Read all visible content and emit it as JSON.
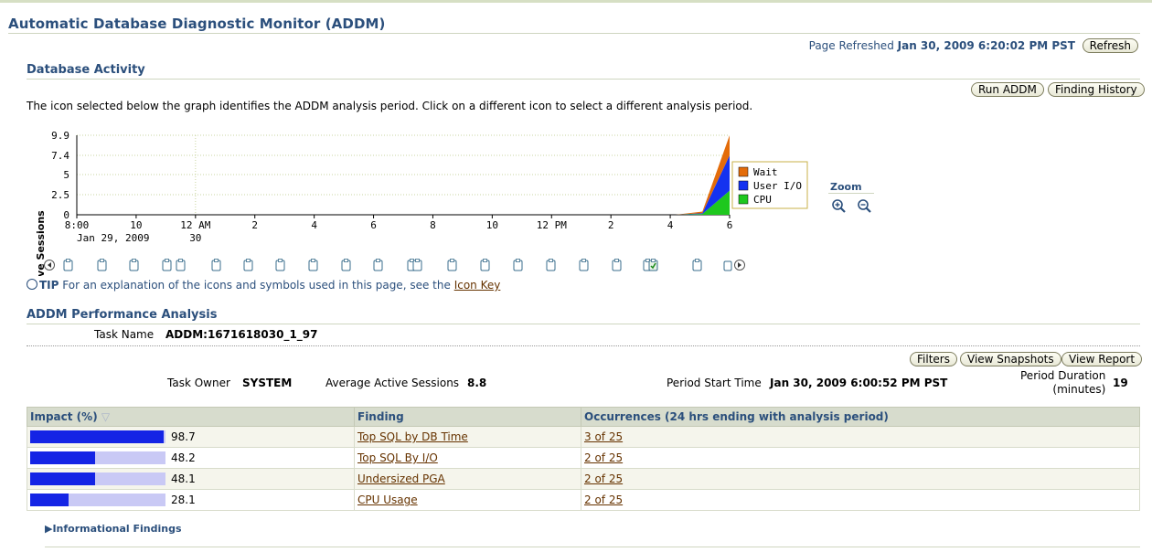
{
  "page": {
    "title": "Automatic Database Diagnostic Monitor (ADDM)"
  },
  "refresh": {
    "label": "Page Refreshed",
    "timestamp": "Jan 30, 2009 6:20:02 PM PST",
    "button": "Refresh"
  },
  "activity": {
    "heading": "Database Activity",
    "buttons": {
      "run_addm": "Run ADDM",
      "finding_history": "Finding History"
    },
    "instruction": "The icon selected below the graph identifies the ADDM analysis period. Click on a different icon to select a different analysis period.",
    "zoom_label": "Zoom",
    "tip_label": "TIP",
    "tip_text": "For an explanation of the icons and symbols used in this page, see the",
    "tip_link": "Icon Key"
  },
  "chart_data": {
    "type": "area",
    "ylabel": "Active Sessions",
    "yticks": [
      "0",
      "2.5",
      "5",
      "7.4",
      "9.9"
    ],
    "ylim": [
      0,
      9.9
    ],
    "xticks": [
      "8:00",
      "10",
      "12 AM",
      "2",
      "4",
      "6",
      "8",
      "10",
      "12 PM",
      "2",
      "4",
      "6"
    ],
    "xticks_sub": [
      "Jan 29, 2009",
      "",
      "30",
      "",
      "",
      "",
      "",
      "",
      "",
      "",
      "",
      ""
    ],
    "grid": true,
    "legend_position": "right",
    "series": [
      {
        "name": "Wait",
        "color": "#e36c0a",
        "values": [
          0,
          0,
          0,
          0,
          0,
          0,
          0,
          0,
          0,
          0,
          0,
          0,
          0,
          0,
          0,
          0,
          0,
          0,
          0,
          0,
          0,
          0,
          0,
          0.2,
          2.5
        ]
      },
      {
        "name": "User I/O",
        "color": "#1432f0",
        "values": [
          0,
          0,
          0,
          0,
          0,
          0,
          0,
          0,
          0,
          0,
          0,
          0,
          0,
          0,
          0,
          0,
          0,
          0,
          0,
          0,
          0,
          0,
          0,
          0.1,
          4.4
        ]
      },
      {
        "name": "CPU",
        "color": "#1ec81e",
        "values": [
          0,
          0,
          0,
          0,
          0,
          0,
          0,
          0,
          0,
          0,
          0,
          0,
          0,
          0,
          0,
          0,
          0,
          0,
          0,
          0,
          0,
          0,
          0,
          0.1,
          3.0
        ]
      }
    ]
  },
  "snapshot_icons": {
    "count": 22,
    "selected_index": 20
  },
  "analysis": {
    "heading": "ADDM Performance Analysis",
    "task_name_label": "Task Name",
    "task_name": "ADDM:1671618030_1_97",
    "buttons": {
      "filters": "Filters",
      "view_snapshots": "View Snapshots",
      "view_report": "View Report"
    },
    "task_owner_label": "Task Owner",
    "task_owner": "SYSTEM",
    "avg_sessions_label": "Average Active Sessions",
    "avg_sessions": "8.8",
    "period_start_label": "Period Start Time",
    "period_start": "Jan 30, 2009 6:00:52 PM PST",
    "period_duration_label_1": "Period Duration",
    "period_duration_label_2": "(minutes)",
    "period_duration": "19"
  },
  "findings": {
    "headers": {
      "impact": "Impact (%)",
      "finding": "Finding",
      "occurrences": "Occurrences (24 hrs ending with analysis period)"
    },
    "rows": [
      {
        "impact": 98.7,
        "impact_text": "98.7",
        "finding": "Top SQL by DB Time",
        "occurrences": "3 of 25"
      },
      {
        "impact": 48.2,
        "impact_text": "48.2",
        "finding": "Top SQL By I/O",
        "occurrences": "2 of 25"
      },
      {
        "impact": 48.1,
        "impact_text": "48.1",
        "finding": "Undersized PGA",
        "occurrences": "2 of 25"
      },
      {
        "impact": 28.1,
        "impact_text": "28.1",
        "finding": "CPU Usage",
        "occurrences": "2 of 25"
      }
    ]
  },
  "informational": {
    "label": "Informational Findings"
  }
}
